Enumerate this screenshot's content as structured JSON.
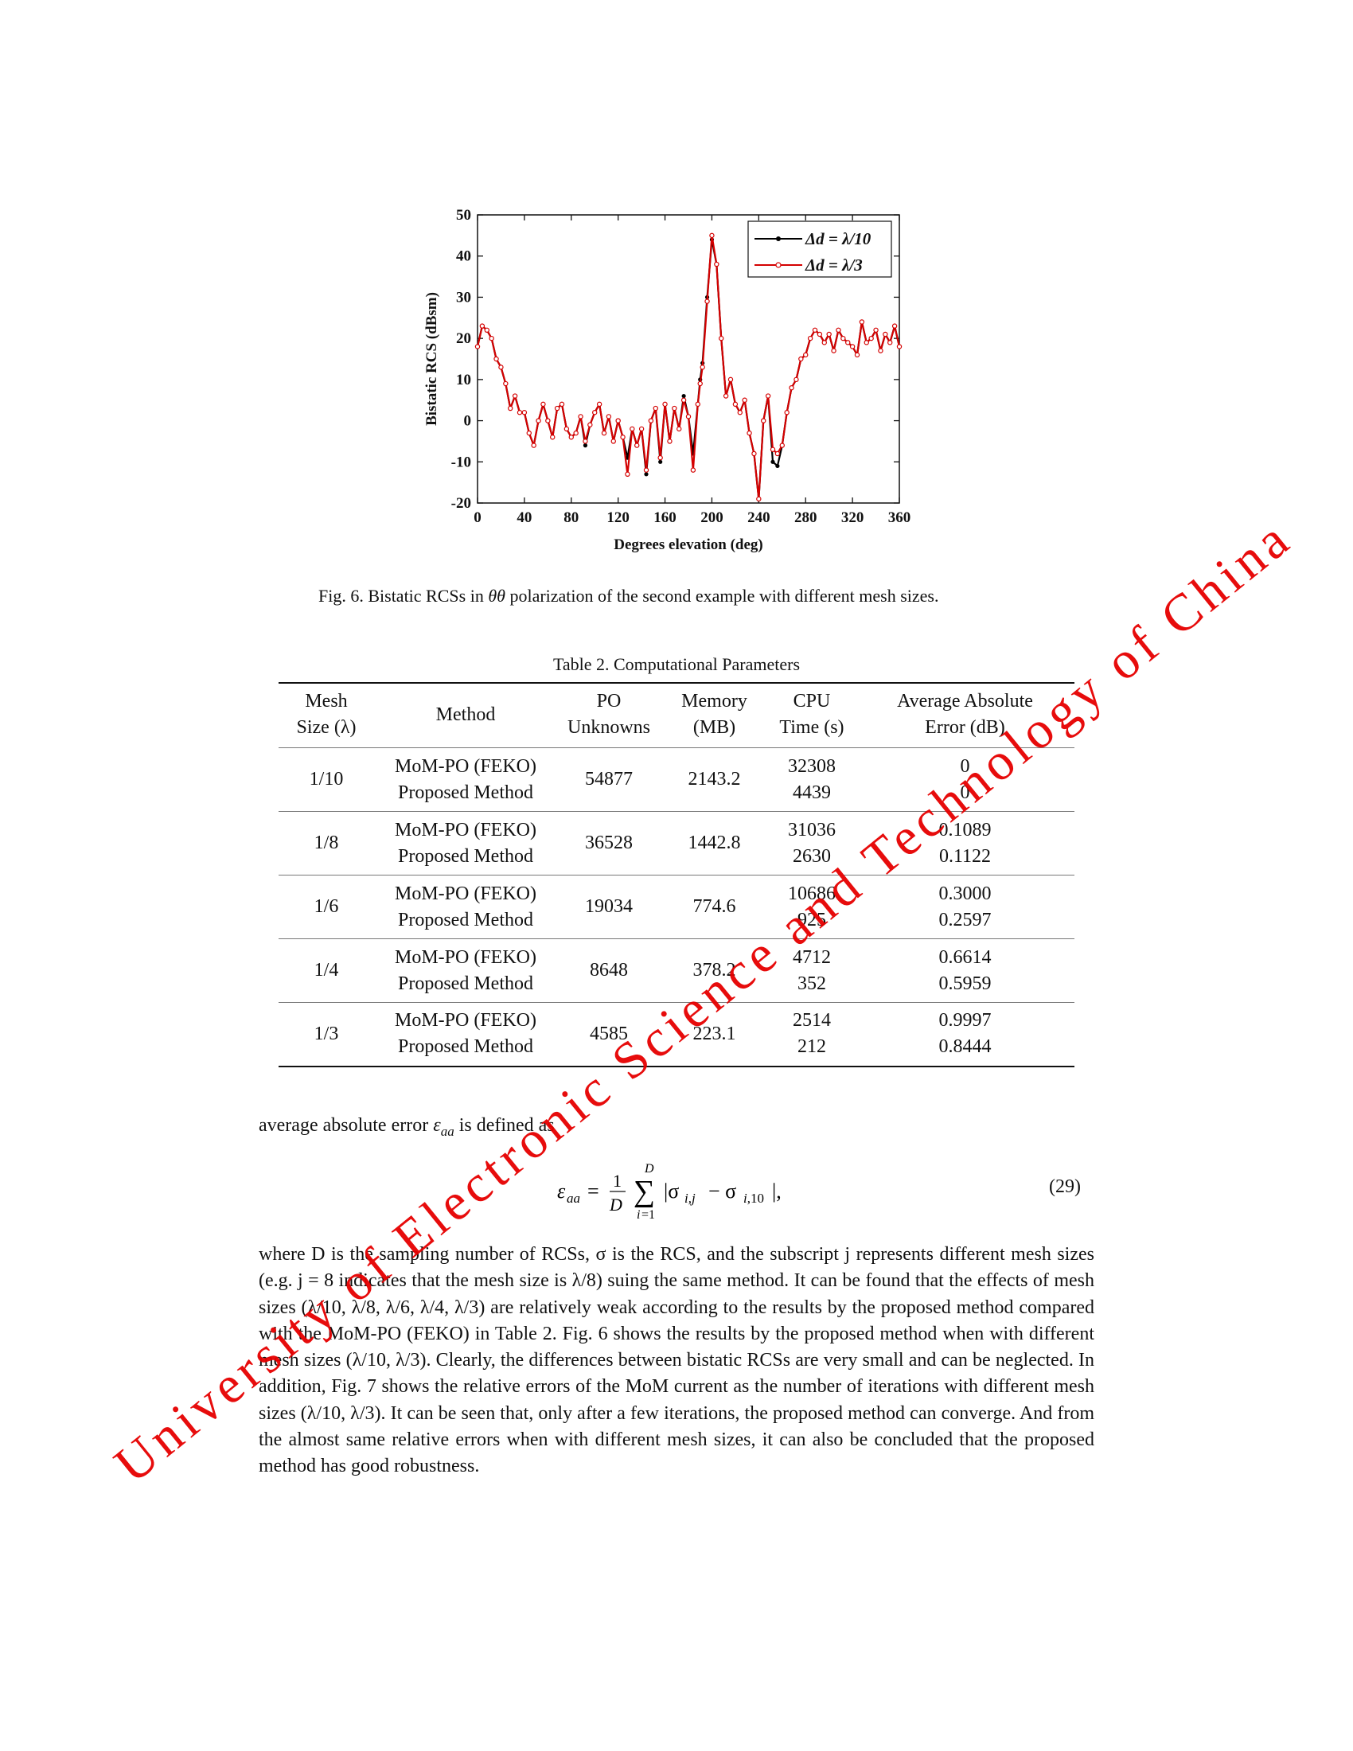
{
  "chart_data": {
    "type": "line",
    "xlabel": "Degrees elevation (deg)",
    "ylabel": "Bistatic RCS (dBsm)",
    "xlim": [
      0,
      360
    ],
    "ylim": [
      -20,
      50
    ],
    "xticks": [
      "0",
      "40",
      "80",
      "120",
      "160",
      "200",
      "240",
      "280",
      "320",
      "360"
    ],
    "yticks": [
      "-20",
      "-10",
      "0",
      "10",
      "20",
      "30",
      "40",
      "50"
    ],
    "legend_position": "top-right",
    "series": [
      {
        "name": "Δd = λ/10",
        "color": "#000000",
        "x": [
          0,
          4,
          8,
          12,
          16,
          20,
          24,
          28,
          32,
          36,
          40,
          44,
          48,
          52,
          56,
          60,
          64,
          68,
          72,
          76,
          80,
          84,
          88,
          92,
          96,
          100,
          104,
          108,
          112,
          116,
          120,
          124,
          128,
          132,
          136,
          140,
          144,
          148,
          152,
          156,
          160,
          164,
          168,
          172,
          176,
          180,
          184,
          188,
          190,
          192,
          196,
          200,
          204,
          208,
          212,
          216,
          220,
          224,
          228,
          232,
          236,
          240,
          244,
          248,
          252,
          256,
          260,
          264,
          268,
          272,
          276,
          280,
          284,
          288,
          292,
          296,
          300,
          304,
          308,
          312,
          316,
          320,
          324,
          328,
          332,
          336,
          340,
          344,
          348,
          352,
          356,
          360
        ],
        "values": [
          18,
          23,
          22,
          20,
          15,
          13,
          9,
          3,
          6,
          2,
          2,
          -3,
          -6,
          0,
          4,
          0,
          -4,
          3,
          4,
          -2,
          -4,
          -3,
          1,
          -6,
          -1,
          2,
          4,
          -3,
          1,
          -5,
          0,
          -4,
          -9,
          -2,
          -6,
          -2,
          -13,
          0,
          3,
          -10,
          4,
          -5,
          3,
          -2,
          6,
          1,
          -8,
          4,
          10,
          14,
          30,
          44,
          38,
          20,
          6,
          10,
          4,
          2,
          5,
          -3,
          -8,
          -19,
          0,
          6,
          -10,
          -11,
          -6,
          2,
          8,
          10,
          15,
          16,
          20,
          22,
          21,
          19,
          21,
          17,
          22,
          20,
          19,
          18,
          16,
          24,
          19,
          20,
          22,
          17,
          21,
          19,
          23,
          18
        ]
      },
      {
        "name": "Δd = λ/3",
        "color": "#d40000",
        "x": [
          0,
          4,
          8,
          12,
          16,
          20,
          24,
          28,
          32,
          36,
          40,
          44,
          48,
          52,
          56,
          60,
          64,
          68,
          72,
          76,
          80,
          84,
          88,
          92,
          96,
          100,
          104,
          108,
          112,
          116,
          120,
          124,
          128,
          132,
          136,
          140,
          144,
          148,
          152,
          156,
          160,
          164,
          168,
          172,
          176,
          180,
          184,
          188,
          190,
          192,
          196,
          200,
          204,
          208,
          212,
          216,
          220,
          224,
          228,
          232,
          236,
          240,
          244,
          248,
          252,
          256,
          260,
          264,
          268,
          272,
          276,
          280,
          284,
          288,
          292,
          296,
          300,
          304,
          308,
          312,
          316,
          320,
          324,
          328,
          332,
          336,
          340,
          344,
          348,
          352,
          356,
          360
        ],
        "values": [
          18,
          23,
          22,
          20,
          15,
          13,
          9,
          3,
          6,
          2,
          2,
          -3,
          -6,
          0,
          4,
          0,
          -4,
          3,
          4,
          -2,
          -4,
          -3,
          1,
          -5,
          -1,
          2,
          4,
          -3,
          1,
          -5,
          0,
          -4,
          -13,
          -2,
          -6,
          -2,
          -12,
          0,
          3,
          -9,
          4,
          -5,
          3,
          -2,
          5,
          1,
          -12,
          4,
          9,
          13,
          29,
          45,
          38,
          20,
          6,
          10,
          4,
          2,
          5,
          -3,
          -8,
          -19,
          0,
          6,
          -7,
          -8,
          -6,
          2,
          8,
          10,
          15,
          16,
          20,
          22,
          21,
          19,
          21,
          17,
          22,
          20,
          19,
          18,
          16,
          24,
          19,
          20,
          22,
          17,
          21,
          19,
          23,
          18
        ]
      }
    ]
  },
  "figure": {
    "caption_prefix": "Fig. 6. Bistatic RCSs in ",
    "caption_symbol": "θθ",
    "caption_suffix": " polarization of the second example with different mesh sizes."
  },
  "table": {
    "caption": "Table 2. Computational Parameters",
    "headers": {
      "mesh": [
        "Mesh",
        "Size (λ)"
      ],
      "method": "Method",
      "po": [
        "PO",
        "Unknowns"
      ],
      "memory": [
        "Memory",
        "(MB)"
      ],
      "cpu": [
        "CPU",
        "Time (s)"
      ],
      "error": [
        "Average Absolute",
        "Error (dB)"
      ]
    },
    "rows": [
      {
        "mesh": "1/10",
        "methods": [
          "MoM-PO (FEKO)",
          "Proposed Method"
        ],
        "po": "54877",
        "memory": "2143.2",
        "cpu": [
          "32308",
          "4439"
        ],
        "error": [
          "0",
          "0"
        ]
      },
      {
        "mesh": "1/8",
        "methods": [
          "MoM-PO (FEKO)",
          "Proposed Method"
        ],
        "po": "36528",
        "memory": "1442.8",
        "cpu": [
          "31036",
          "2630"
        ],
        "error": [
          "0.1089",
          "0.1122"
        ]
      },
      {
        "mesh": "1/6",
        "methods": [
          "MoM-PO (FEKO)",
          "Proposed Method"
        ],
        "po": "19034",
        "memory": "774.6",
        "cpu": [
          "10686",
          "925"
        ],
        "error": [
          "0.3000",
          "0.2597"
        ]
      },
      {
        "mesh": "1/4",
        "methods": [
          "MoM-PO (FEKO)",
          "Proposed Method"
        ],
        "po": "8648",
        "memory": "378.2",
        "cpu": [
          "4712",
          "352"
        ],
        "error": [
          "0.6614",
          "0.5959"
        ]
      },
      {
        "mesh": "1/3",
        "methods": [
          "MoM-PO (FEKO)",
          "Proposed Method"
        ],
        "po": "4585",
        "memory": "223.1",
        "cpu": [
          "2514",
          "212"
        ],
        "error": [
          "0.9997",
          "0.8444"
        ]
      }
    ]
  },
  "text": {
    "intro_prefix": "average absolute error ",
    "intro_symbol": "ε",
    "intro_subscript": "aa",
    "intro_suffix": " is defined as",
    "equation_number": "(29)",
    "paragraph": "where D is the sampling number of RCSs, σ is the RCS, and the subscript j represents different mesh sizes (e.g. j = 8 indicates that the mesh size is λ/8) suing the same method. It can be found that the effects of mesh sizes (λ/10, λ/8, λ/6, λ/4, λ/3) are relatively weak according to the results by the proposed method compared with the MoM-PO (FEKO) in Table 2. Fig. 6 shows the results by the proposed method when with different mesh sizes (λ/10, λ/3). Clearly, the differences between bistatic RCSs are very small and can be neglected. In addition, Fig. 7 shows the relative errors of the MoM current as the number of iterations with different mesh sizes (λ/10, λ/3). It can be seen that, only after a few iterations, the proposed method can converge. And from the almost same relative errors when with different mesh sizes, it can also be concluded that the proposed method has good robustness."
  },
  "watermark": "University of Electronic Science and Technology of China",
  "watermark_color": "#e60000"
}
